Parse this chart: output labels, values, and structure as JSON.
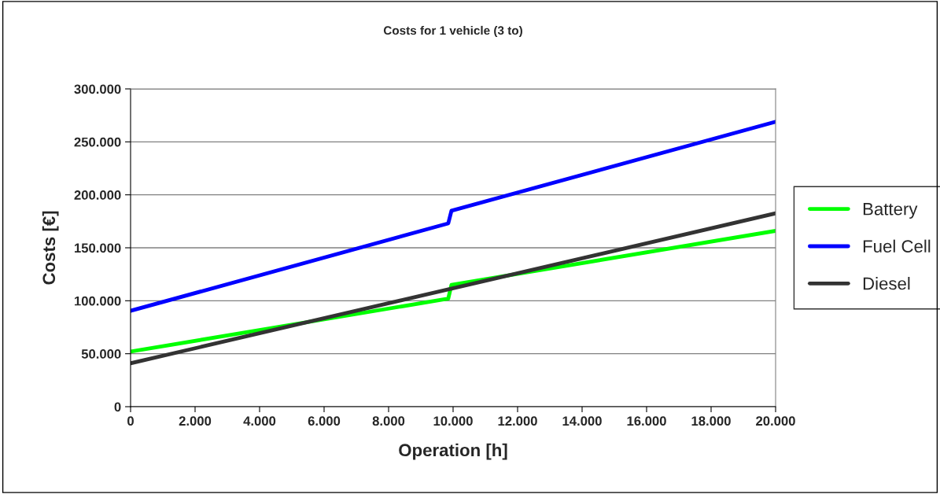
{
  "chart_data": {
    "type": "line",
    "title": "Costs for 1 vehicle (3 to)",
    "xlabel": "Operation [h]",
    "ylabel": "Costs [€]",
    "series": [
      {
        "name": "Battery",
        "color": "#00ff00",
        "x": [
          0,
          9850,
          9950,
          20000
        ],
        "values": [
          52000,
          102000,
          115000,
          166000
        ]
      },
      {
        "name": "Fuel Cell",
        "color": "#0000ff",
        "x": [
          0,
          9850,
          9950,
          20000
        ],
        "values": [
          90500,
          173000,
          185000,
          269000
        ]
      },
      {
        "name": "Diesel",
        "color": "#333333",
        "x": [
          0,
          20000
        ],
        "values": [
          41000,
          182500
        ]
      }
    ],
    "xlim": [
      0,
      20000
    ],
    "xticks": [
      {
        "value": 0,
        "label": "0"
      },
      {
        "value": 2000,
        "label": "2.000"
      },
      {
        "value": 4000,
        "label": "4.000"
      },
      {
        "value": 6000,
        "label": "6.000"
      },
      {
        "value": 8000,
        "label": "8.000"
      },
      {
        "value": 10000,
        "label": "10.000"
      },
      {
        "value": 12000,
        "label": "12.000"
      },
      {
        "value": 14000,
        "label": "14.000"
      },
      {
        "value": 16000,
        "label": "16.000"
      },
      {
        "value": 18000,
        "label": "18.000"
      },
      {
        "value": 20000,
        "label": "20.000"
      }
    ],
    "ylim": [
      0,
      300000
    ],
    "yticks": [
      {
        "value": 0,
        "label": "0"
      },
      {
        "value": 50000,
        "label": "50.000"
      },
      {
        "value": 100000,
        "label": "100.000"
      },
      {
        "value": 150000,
        "label": "150.000"
      },
      {
        "value": 200000,
        "label": "200.000"
      },
      {
        "value": 250000,
        "label": "250.000"
      },
      {
        "value": 300000,
        "label": "300.000"
      }
    ],
    "grid": "y",
    "legend": "right",
    "marker": "none",
    "line_style": "solid"
  }
}
